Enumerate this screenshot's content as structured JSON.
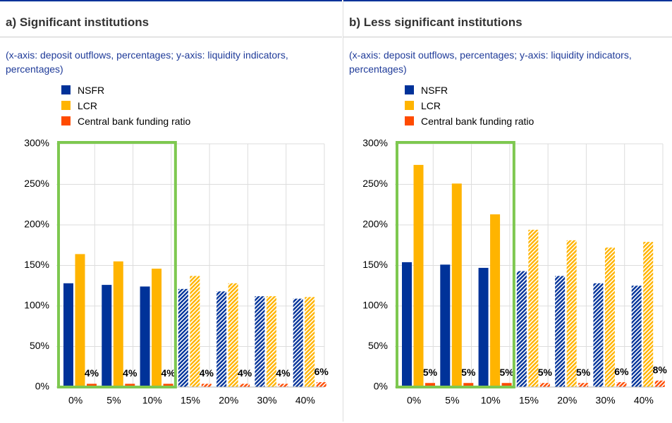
{
  "chart_data": [
    {
      "type": "bar",
      "title": "a) Significant institutions",
      "subtitle": "(x-axis: deposit outflows, percentages; y-axis: liquidity indicators, percentages)",
      "categories": [
        "0%",
        "5%",
        "10%",
        "15%",
        "20%",
        "30%",
        "40%"
      ],
      "series": [
        {
          "name": "NSFR",
          "color": "#003299",
          "values": [
            128,
            126,
            124,
            121,
            118,
            112,
            109
          ]
        },
        {
          "name": "LCR",
          "color": "#ffb400",
          "values": [
            164,
            155,
            146,
            137,
            128,
            112,
            111
          ]
        },
        {
          "name": "Central bank funding ratio",
          "color": "#ff4b00",
          "values": [
            4,
            4,
            4,
            4,
            4,
            4,
            6
          ],
          "value_labels": [
            "4%",
            "4%",
            "4%",
            "4%",
            "4%",
            "4%",
            "6%"
          ]
        }
      ],
      "ylim": [
        0,
        300
      ],
      "yticks": [
        {
          "value": 0,
          "label": "0%"
        },
        {
          "value": 50,
          "label": "50%"
        },
        {
          "value": 100,
          "label": "100%"
        },
        {
          "value": 150,
          "label": "150%"
        },
        {
          "value": 200,
          "label": "200%"
        },
        {
          "value": 250,
          "label": "250%"
        },
        {
          "value": 300,
          "label": "300%"
        }
      ],
      "grid": true
    },
    {
      "type": "bar",
      "title": "b) Less significant institutions",
      "subtitle": "(x-axis: deposit outflows, percentages; y-axis: liquidity indicators, percentages)",
      "categories": [
        "0%",
        "5%",
        "10%",
        "15%",
        "20%",
        "30%",
        "40%"
      ],
      "series": [
        {
          "name": "NSFR",
          "color": "#003299",
          "values": [
            154,
            151,
            147,
            143,
            137,
            128,
            125
          ]
        },
        {
          "name": "LCR",
          "color": "#ffb400",
          "values": [
            274,
            251,
            213,
            194,
            181,
            172,
            179
          ]
        },
        {
          "name": "Central bank funding ratio",
          "color": "#ff4b00",
          "values": [
            5,
            5,
            5,
            5,
            5,
            6,
            8
          ],
          "value_labels": [
            "5%",
            "5%",
            "5%",
            "5%",
            "5%",
            "6%",
            "8%"
          ]
        }
      ],
      "ylim": [
        0,
        300
      ],
      "yticks": [
        {
          "value": 0,
          "label": "0%"
        },
        {
          "value": 50,
          "label": "50%"
        },
        {
          "value": 100,
          "label": "100%"
        },
        {
          "value": 150,
          "label": "150%"
        },
        {
          "value": 200,
          "label": "200%"
        },
        {
          "value": 250,
          "label": "250%"
        },
        {
          "value": 300,
          "label": "300%"
        }
      ],
      "grid": true
    }
  ]
}
